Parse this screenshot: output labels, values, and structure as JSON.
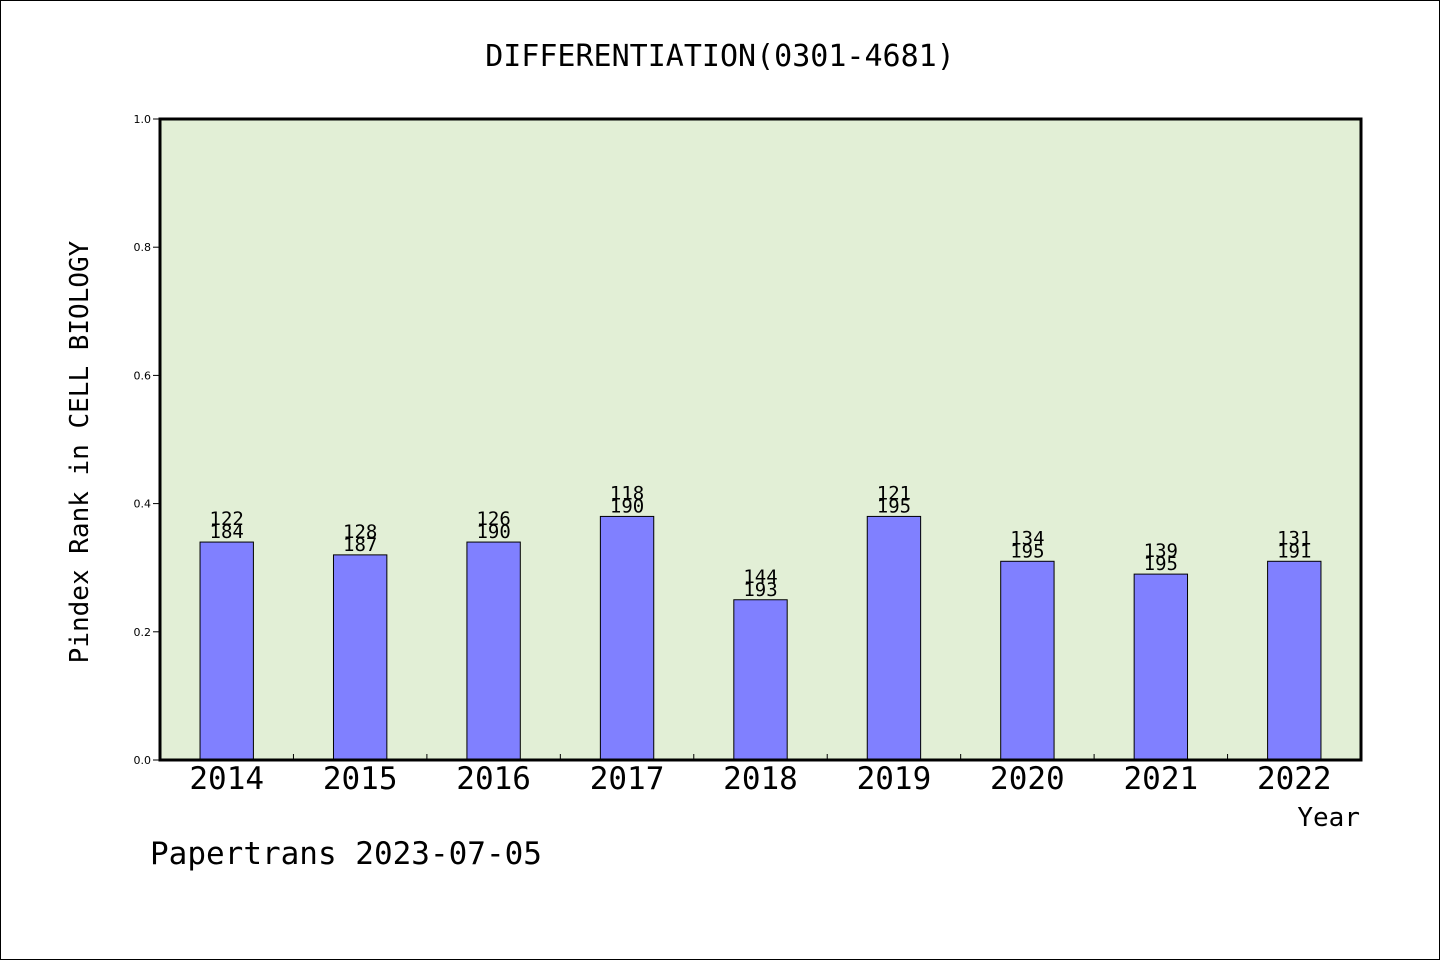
{
  "chart_data": {
    "type": "bar",
    "title": "DIFFERENTIATION(0301-4681)",
    "xlabel": "Year",
    "ylabel": "Pindex Rank in CELL BIOLOGY",
    "categories": [
      "2014",
      "2015",
      "2016",
      "2017",
      "2018",
      "2019",
      "2020",
      "2021",
      "2022"
    ],
    "values": [
      0.34,
      0.32,
      0.34,
      0.38,
      0.25,
      0.38,
      0.31,
      0.29,
      0.31
    ],
    "rank_labels": [
      "122",
      "128",
      "126",
      "118",
      "144",
      "121",
      "134",
      "139",
      "131"
    ],
    "total_labels": [
      "184",
      "187",
      "190",
      "190",
      "193",
      "195",
      "195",
      "195",
      "191"
    ],
    "ylim": [
      0,
      1.0
    ],
    "yticks": [
      "0.0",
      "0.2",
      "0.4",
      "0.6",
      "0.8",
      "1.0"
    ],
    "grid": false,
    "legend": "none",
    "colors": {
      "plot_background": "#e2efd6",
      "bar_fill": "#8080ff",
      "bar_stroke": "#000000"
    }
  },
  "footer": {
    "watermark": "Papertrans 2023-07-05"
  }
}
